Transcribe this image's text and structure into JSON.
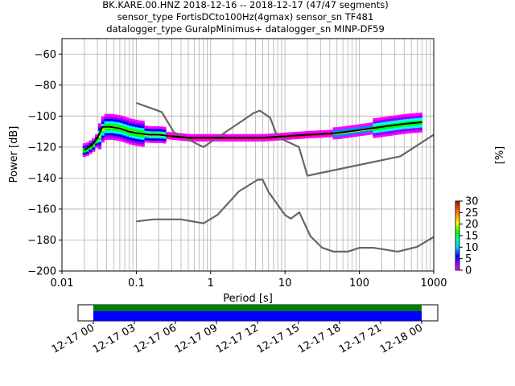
{
  "chart_data": [
    {
      "type": "heatmap",
      "title_lines": [
        "BK.KARE.00.HNZ   2018-12-16 -- 2018-12-17  (47/47 segments)",
        "sensor_type FortisDCto100Hz(4gmax) sensor_sn TF481",
        "datalogger_type GuralpMinimus+ datalogger_sn MINP-DF59"
      ],
      "xlabel": "Period [s]",
      "ylabel": "Power [dB]",
      "xscale": "log",
      "xlim": [
        0.01,
        1000
      ],
      "ylim": [
        -200,
        -50
      ],
      "x_ticks": [
        0.01,
        0.1,
        1,
        10,
        100,
        1000
      ],
      "x_tick_labels": [
        "0.01",
        "0.1",
        "1",
        "10",
        "100",
        "1000"
      ],
      "y_ticks": [
        -200,
        -180,
        -160,
        -140,
        -120,
        -100,
        -80,
        -60
      ],
      "y_tick_labels": [
        "−200",
        "−180",
        "−160",
        "−140",
        "−120",
        "−100",
        "−80",
        "−60"
      ],
      "grid": true,
      "colorbar": {
        "label": "[%]",
        "range": [
          0,
          30
        ],
        "ticks": [
          0,
          5,
          10,
          15,
          20,
          25,
          30
        ],
        "tick_labels": [
          "0",
          "5",
          "10",
          "15",
          "20",
          "25",
          "30"
        ]
      },
      "series": [
        {
          "name": "",
          "role": "mean PSD",
          "color": "#000000",
          "x": [
            0.02,
            0.025,
            0.03,
            0.035,
            0.045,
            0.06,
            0.08,
            0.1,
            0.15,
            0.2,
            0.3,
            0.5,
            0.8,
            1,
            2,
            5,
            10,
            20,
            50,
            100,
            200,
            400,
            700
          ],
          "y": [
            -122,
            -119,
            -114,
            -107,
            -107,
            -108,
            -110,
            -111,
            -112,
            -112,
            -113,
            -114,
            -114,
            -114,
            -114,
            -114,
            -113,
            -112,
            -111,
            -109,
            -107,
            -105,
            -104
          ]
        },
        {
          "name": "",
          "role": "NHNM (upper noise model)",
          "color": "#666666",
          "x": [
            0.1,
            0.22,
            0.32,
            0.8,
            3.8,
            4.6,
            6.3,
            7.9,
            15.4,
            20,
            354.8,
            1000
          ],
          "y": [
            -91.5,
            -97.4,
            -110.5,
            -120,
            -98,
            -96.5,
            -101,
            -113.5,
            -120,
            -138.5,
            -126,
            -112
          ]
        },
        {
          "name": "",
          "role": "NLNM (lower noise model)",
          "color": "#666666",
          "x": [
            0.1,
            0.17,
            0.4,
            0.8,
            1.24,
            2.4,
            4.3,
            5,
            6,
            10,
            12,
            15.6,
            21.9,
            31.6,
            45,
            70,
            101,
            154,
            328,
            600,
            1000
          ],
          "y": [
            -168,
            -166.7,
            -166.7,
            -169.2,
            -163.7,
            -148.6,
            -141.1,
            -141.1,
            -149,
            -163.8,
            -166.2,
            -162.1,
            -177.5,
            -185,
            -187.5,
            -187.5,
            -185,
            -185,
            -187.5,
            -184.4,
            -178
          ]
        }
      ]
    },
    {
      "type": "timeline",
      "x_tick_labels": [
        "12-17 00",
        "12-17 03",
        "12-17 06",
        "12-17 09",
        "12-17 12",
        "12-17 15",
        "12-17 18",
        "12-17 21",
        "12-18 00"
      ],
      "bars": [
        {
          "name": "",
          "color": "#008000"
        },
        {
          "name": "",
          "color": "#0000ff"
        }
      ]
    }
  ]
}
